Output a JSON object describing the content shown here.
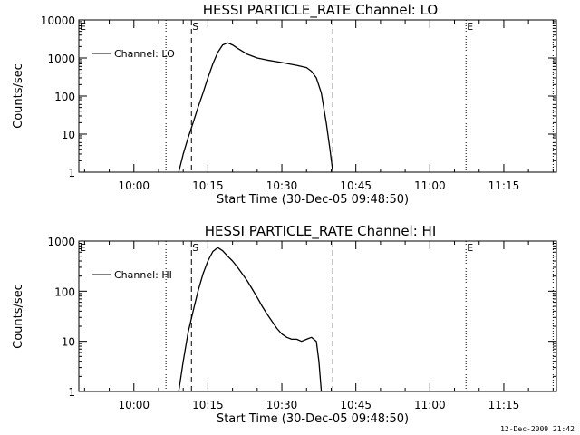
{
  "stamp": "12-Dec-2009 21:42",
  "chart_data": [
    {
      "type": "line",
      "title": "HESSI PARTICLE_RATE Channel: LO",
      "xlabel": "Start Time (30-Dec-05 09:48:50)",
      "ylabel": "Counts/sec",
      "y_scale": "log",
      "xlim": [
        "09:48:50",
        "11:25:40"
      ],
      "ylim": [
        1,
        10000
      ],
      "x_ticks": [
        "10:00",
        "10:15",
        "10:30",
        "10:45",
        "11:00",
        "11:15"
      ],
      "y_ticks": [
        {
          "value": 1,
          "label": "1"
        },
        {
          "value": 10,
          "label": "10"
        },
        {
          "value": 100,
          "label": "100"
        },
        {
          "value": 1000,
          "label": "1000"
        },
        {
          "value": 10000,
          "label": "10000"
        }
      ],
      "legend": {
        "label": "Channel: LO",
        "placement": "top-left"
      },
      "vlines": [
        {
          "x": "09:48:50",
          "style": "dotted",
          "label": "E"
        },
        {
          "x": "10:06:30",
          "style": "dotted",
          "label": ""
        },
        {
          "x": "10:11:40",
          "style": "dashed",
          "label": "S"
        },
        {
          "x": "10:40:20",
          "style": "dashed",
          "label": ""
        },
        {
          "x": "11:07:20",
          "style": "dotted",
          "label": "E"
        },
        {
          "x": "11:25:00",
          "style": "dotted",
          "label": ""
        }
      ],
      "series": [
        {
          "name": "Channel: LO",
          "x": [
            "10:09:05",
            "10:10:00",
            "10:11:00",
            "10:12:00",
            "10:13:00",
            "10:14:00",
            "10:15:00",
            "10:16:00",
            "10:17:00",
            "10:18:00",
            "10:19:00",
            "10:20:00",
            "10:21:00",
            "10:22:00",
            "10:23:00",
            "10:25:00",
            "10:27:00",
            "10:30:00",
            "10:33:00",
            "10:35:00",
            "10:36:00",
            "10:37:00",
            "10:38:00",
            "10:39:00",
            "10:39:45",
            "10:40:20"
          ],
          "y": [
            1,
            3,
            8,
            20,
            50,
            120,
            300,
            700,
            1400,
            2200,
            2500,
            2200,
            1800,
            1500,
            1250,
            1000,
            880,
            760,
            640,
            560,
            450,
            300,
            120,
            20,
            4,
            1
          ]
        }
      ]
    },
    {
      "type": "line",
      "title": "HESSI PARTICLE_RATE Channel: HI",
      "xlabel": "Start Time (30-Dec-05 09:48:50)",
      "ylabel": "Counts/sec",
      "y_scale": "log",
      "xlim": [
        "09:48:50",
        "11:25:40"
      ],
      "ylim": [
        1,
        1000
      ],
      "x_ticks": [
        "10:00",
        "10:15",
        "10:30",
        "10:45",
        "11:00",
        "11:15"
      ],
      "y_ticks": [
        {
          "value": 1,
          "label": "1"
        },
        {
          "value": 10,
          "label": "10"
        },
        {
          "value": 100,
          "label": "100"
        },
        {
          "value": 1000,
          "label": "1000"
        }
      ],
      "legend": {
        "label": "Channel: HI",
        "placement": "top-left"
      },
      "vlines": [
        {
          "x": "09:48:50",
          "style": "dotted",
          "label": "E"
        },
        {
          "x": "10:06:30",
          "style": "dotted",
          "label": ""
        },
        {
          "x": "10:11:40",
          "style": "dashed",
          "label": "S"
        },
        {
          "x": "10:40:20",
          "style": "dashed",
          "label": ""
        },
        {
          "x": "11:07:20",
          "style": "dotted",
          "label": "E"
        },
        {
          "x": "11:25:00",
          "style": "dotted",
          "label": ""
        }
      ],
      "series": [
        {
          "name": "Channel: HI",
          "x": [
            "10:09:05",
            "10:10:00",
            "10:11:00",
            "10:12:00",
            "10:13:00",
            "10:14:00",
            "10:15:00",
            "10:16:00",
            "10:17:00",
            "10:18:00",
            "10:19:00",
            "10:20:00",
            "10:21:00",
            "10:22:00",
            "10:23:00",
            "10:24:00",
            "10:25:00",
            "10:26:00",
            "10:27:00",
            "10:28:00",
            "10:29:00",
            "10:30:00",
            "10:31:00",
            "10:32:00",
            "10:33:00",
            "10:34:00",
            "10:35:00",
            "10:36:00",
            "10:37:00",
            "10:37:30",
            "10:38:00"
          ],
          "y": [
            1,
            4,
            15,
            40,
            100,
            220,
            400,
            620,
            740,
            640,
            500,
            400,
            300,
            220,
            160,
            110,
            75,
            50,
            35,
            25,
            18,
            14,
            12,
            11,
            11,
            10,
            11,
            12,
            10,
            4,
            1
          ]
        }
      ]
    }
  ]
}
